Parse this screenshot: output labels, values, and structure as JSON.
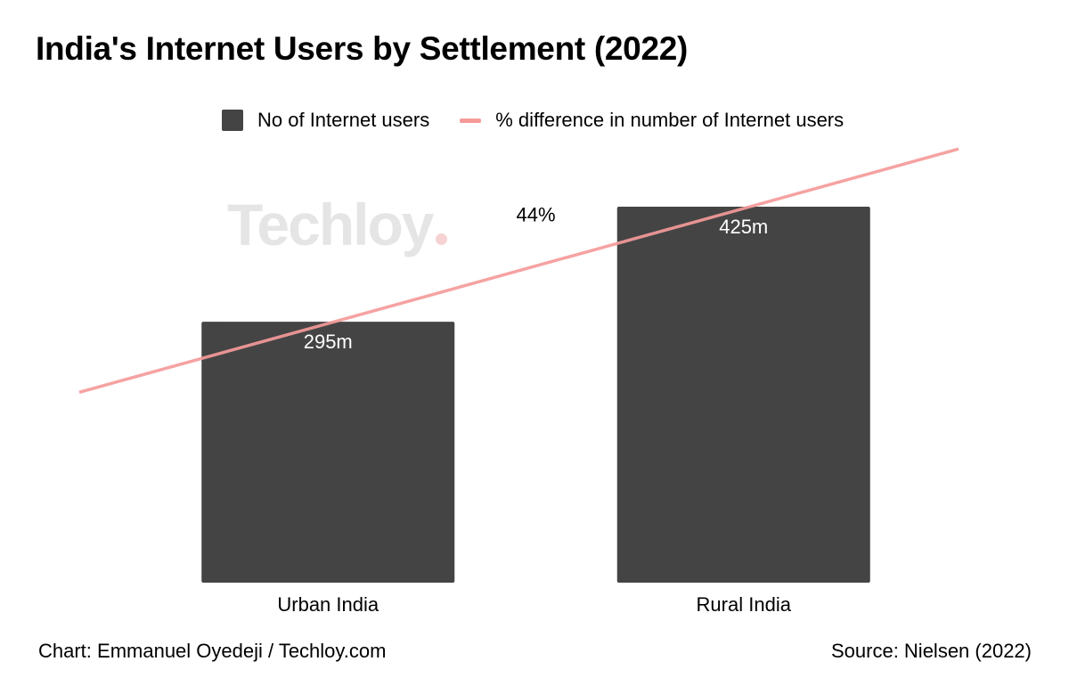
{
  "chart_data": {
    "type": "bar",
    "title": "India's Internet Users by Settlement (2022)",
    "categories": [
      "Urban India",
      "Rural India"
    ],
    "series": [
      {
        "name": "No of Internet users",
        "kind": "bar",
        "color": "#444444",
        "values": [
          295,
          425
        ],
        "data_labels": [
          "295m",
          "425m"
        ]
      },
      {
        "name": "% difference in number of Internet users",
        "kind": "line",
        "color": "#f59a9a",
        "annotation": "44%"
      }
    ],
    "ylim": [
      0,
      425
    ],
    "xlabel": "",
    "ylabel": "",
    "grid": false,
    "legend_position": "top"
  },
  "watermark": "Techloy",
  "footer": {
    "credit": "Chart: Emmanuel Oyedeji / Techloy.com",
    "source": "Source: Nielsen (2022)"
  }
}
